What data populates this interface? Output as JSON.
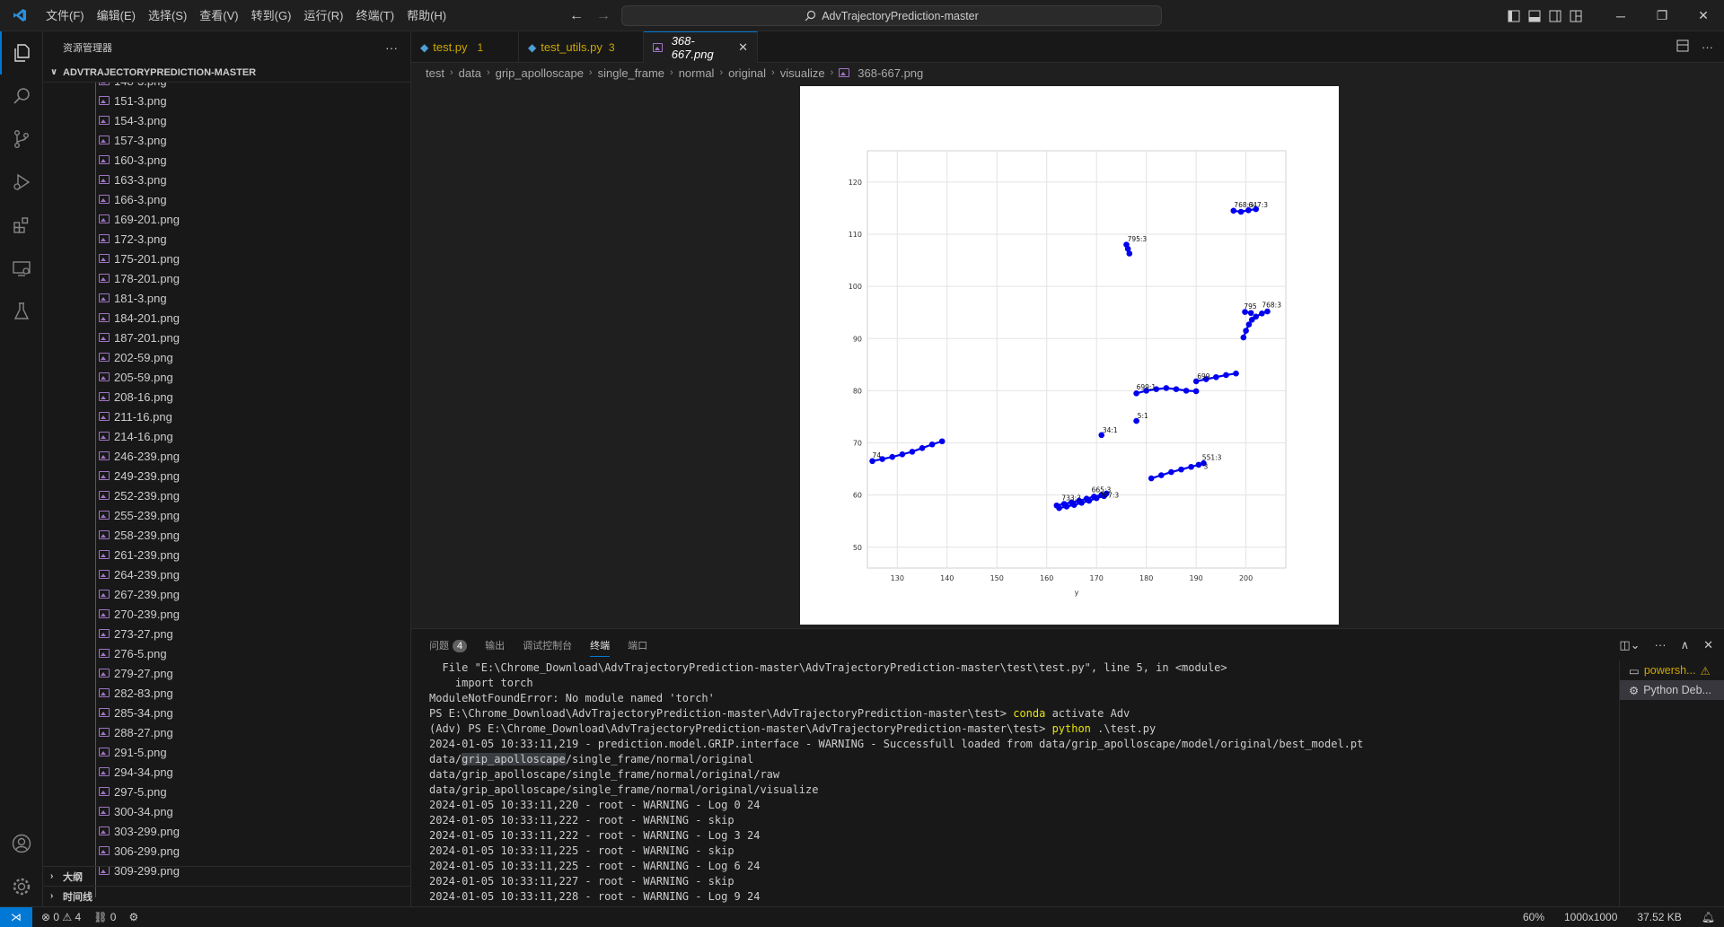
{
  "titlebar": {
    "menus": [
      "文件(F)",
      "编辑(E)",
      "选择(S)",
      "查看(V)",
      "转到(G)",
      "运行(R)",
      "终端(T)",
      "帮助(H)"
    ],
    "search_text": "AdvTrajectoryPrediction-master"
  },
  "sidebar": {
    "title": "资源管理器",
    "root": "ADVTRAJECTORYPREDICTION-MASTER",
    "partial_top": "148-3.png",
    "files": [
      "151-3.png",
      "154-3.png",
      "157-3.png",
      "160-3.png",
      "163-3.png",
      "166-3.png",
      "169-201.png",
      "172-3.png",
      "175-201.png",
      "178-201.png",
      "181-3.png",
      "184-201.png",
      "187-201.png",
      "202-59.png",
      "205-59.png",
      "208-16.png",
      "211-16.png",
      "214-16.png",
      "246-239.png",
      "249-239.png",
      "252-239.png",
      "255-239.png",
      "258-239.png",
      "261-239.png",
      "264-239.png",
      "267-239.png",
      "270-239.png",
      "273-27.png",
      "276-5.png",
      "279-27.png",
      "282-83.png",
      "285-34.png",
      "288-27.png",
      "291-5.png",
      "294-34.png",
      "297-5.png",
      "300-34.png",
      "303-299.png",
      "306-299.png"
    ],
    "partial_bottom": "309-299.png",
    "outline": "大纲",
    "timeline": "时间线"
  },
  "tabs": [
    {
      "label": "test.py",
      "count": "1",
      "warn": true
    },
    {
      "label": "test_utils.py",
      "count": "3",
      "warn": true
    },
    {
      "label": "368-667.png",
      "active": true
    }
  ],
  "breadcrumb": [
    "test",
    "data",
    "grip_apolloscape",
    "single_frame",
    "normal",
    "original",
    "visualize",
    "368-667.png"
  ],
  "chart_data": {
    "type": "scatter",
    "xlabel": "y",
    "xticks": [
      130,
      140,
      150,
      160,
      170,
      180,
      190,
      200
    ],
    "yticks": [
      50,
      60,
      70,
      80,
      90,
      100,
      110,
      120
    ],
    "xlim": [
      124,
      208
    ],
    "ylim": [
      46,
      126
    ],
    "grid": true,
    "point_color": "#0000ee",
    "series": [
      {
        "points": [
          [
            125,
            66.5
          ],
          [
            127,
            66.9
          ],
          [
            129,
            67.3
          ],
          [
            131,
            67.8
          ],
          [
            133,
            68.3
          ],
          [
            135,
            69.0
          ],
          [
            137,
            69.7
          ],
          [
            139,
            70.3
          ]
        ]
      },
      {
        "points": [
          [
            176,
            108.0
          ],
          [
            176.3,
            107.2
          ],
          [
            176.6,
            106.3
          ]
        ]
      },
      {
        "points": [
          [
            197.5,
            114.5
          ],
          [
            199,
            114.3
          ],
          [
            200.5,
            114.6
          ],
          [
            202,
            114.8
          ]
        ]
      },
      {
        "points": [
          [
            199.5,
            90.2
          ],
          [
            200,
            91.5
          ],
          [
            200.6,
            92.7
          ],
          [
            201.2,
            93.6
          ],
          [
            202,
            94.2
          ],
          [
            203.2,
            94.8
          ],
          [
            204.3,
            95.2
          ]
        ]
      },
      {
        "points": [
          [
            199.8,
            95.1
          ],
          [
            201,
            94.9
          ]
        ]
      },
      {
        "points": [
          [
            178,
            79.5
          ],
          [
            180,
            80.0
          ],
          [
            182,
            80.3
          ],
          [
            184,
            80.5
          ],
          [
            186,
            80.3
          ],
          [
            188,
            80.0
          ],
          [
            190,
            79.9
          ]
        ]
      },
      {
        "points": [
          [
            190,
            81.8
          ],
          [
            192,
            82.2
          ],
          [
            194,
            82.6
          ],
          [
            196,
            83.0
          ],
          [
            198,
            83.3
          ]
        ]
      },
      {
        "points": [
          [
            171,
            71.5
          ]
        ]
      },
      {
        "points": [
          [
            178,
            74.2
          ]
        ]
      },
      {
        "points": [
          [
            181,
            63.2
          ],
          [
            183,
            63.8
          ],
          [
            185,
            64.4
          ],
          [
            187,
            64.9
          ],
          [
            189,
            65.4
          ],
          [
            190.5,
            65.8
          ],
          [
            191.5,
            66.1
          ]
        ]
      },
      {
        "points": [
          [
            162,
            58.0
          ],
          [
            163.5,
            58.3
          ],
          [
            165,
            58.6
          ],
          [
            166.5,
            58.9
          ],
          [
            168,
            59.3
          ],
          [
            169.5,
            59.7
          ],
          [
            171,
            60.0
          ],
          [
            172,
            60.3
          ]
        ]
      },
      {
        "points": [
          [
            162.5,
            57.5
          ],
          [
            164,
            57.8
          ],
          [
            165.5,
            58.1
          ],
          [
            167,
            58.5
          ],
          [
            168.5,
            58.9
          ],
          [
            170,
            59.4
          ],
          [
            171.5,
            59.8
          ]
        ]
      }
    ],
    "labels": [
      {
        "text": "795:3",
        "x": 176.2,
        "y": 108.6
      },
      {
        "text": "768:3",
        "x": 197.6,
        "y": 115.2
      },
      {
        "text": "647:3",
        "x": 200.5,
        "y": 115.2
      },
      {
        "text": "795",
        "x": 199.6,
        "y": 95.7
      },
      {
        "text": "768:3",
        "x": 203.2,
        "y": 96.0
      },
      {
        "text": "699:1",
        "x": 178,
        "y": 80.2
      },
      {
        "text": "699",
        "x": 190.2,
        "y": 82.3
      },
      {
        "text": "34:1",
        "x": 171.2,
        "y": 72.0
      },
      {
        "text": "5:1",
        "x": 178.2,
        "y": 74.7
      },
      {
        "text": "551:3",
        "x": 191.2,
        "y": 66.7
      },
      {
        "text": "3",
        "x": 191.5,
        "y": 65.0
      },
      {
        "text": "733:3",
        "x": 163,
        "y": 59.0
      },
      {
        "text": "665:3",
        "x": 169,
        "y": 60.5
      },
      {
        "text": "707:3",
        "x": 170.6,
        "y": 59.5
      },
      {
        "text": "74",
        "x": 125,
        "y": 67.2
      }
    ]
  },
  "panel": {
    "tabs": [
      "问题",
      "输出",
      "调试控制台",
      "终端",
      "端口"
    ],
    "problems_count": "4",
    "active_tab": "终端",
    "terminal_lines": [
      {
        "text": "  File \"E:\\Chrome_Download\\AdvTrajectoryPrediction-master\\AdvTrajectoryPrediction-master\\test\\test.py\", line 5, in <module>"
      },
      {
        "text": "    import torch"
      },
      {
        "text": "ModuleNotFoundError: No module named 'torch'"
      },
      {
        "text": "PS E:\\Chrome_Download\\AdvTrajectoryPrediction-master\\AdvTrajectoryPrediction-master\\test> ",
        "cmd": "conda",
        "rest": " activate Adv"
      },
      {
        "text": "(Adv) PS E:\\Chrome_Download\\AdvTrajectoryPrediction-master\\AdvTrajectoryPrediction-master\\test> ",
        "cmd": "python",
        "rest": " .\\test.py"
      },
      {
        "text": "2024-01-05 10:33:11,219 - prediction.model.GRIP.interface - WARNING - Successfull loaded from data/grip_apolloscape/model/original/best_model.pt"
      },
      {
        "text": "data/",
        "sel": "grip_apolloscape",
        "rest": "/single_frame/normal/original"
      },
      {
        "text": "data/grip_apolloscape/single_frame/normal/original/raw"
      },
      {
        "text": "data/grip_apolloscape/single_frame/normal/original/visualize"
      },
      {
        "text": "2024-01-05 10:33:11,220 - root - WARNING - Log 0 24"
      },
      {
        "text": "2024-01-05 10:33:11,222 - root - WARNING - skip"
      },
      {
        "text": "2024-01-05 10:33:11,222 - root - WARNING - Log 3 24"
      },
      {
        "text": "2024-01-05 10:33:11,225 - root - WARNING - skip"
      },
      {
        "text": "2024-01-05 10:33:11,225 - root - WARNING - Log 6 24"
      },
      {
        "text": "2024-01-05 10:33:11,227 - root - WARNING - skip"
      },
      {
        "text": "2024-01-05 10:33:11,228 - root - WARNING - Log 9 24"
      }
    ],
    "terminals": [
      "powersh...",
      "Python Deb..."
    ]
  },
  "statusbar": {
    "errors": "0",
    "warnings": "4",
    "ports": "0",
    "zoom": "60%",
    "dimensions": "1000x1000",
    "filesize": "37.52 KB"
  },
  "colors": {
    "accent": "#0078d4",
    "warning": "#cca700",
    "image_icon": "#a074c4"
  }
}
